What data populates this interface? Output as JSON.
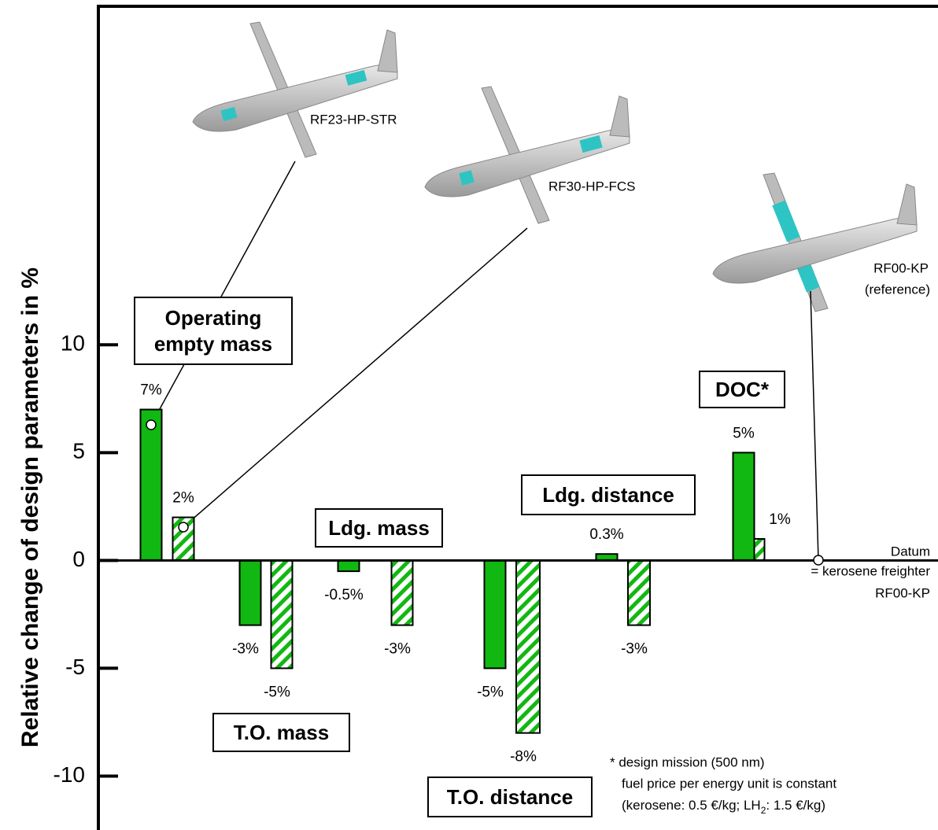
{
  "chart_data": {
    "type": "bar",
    "y_label": "Relative change of design parameters  in %",
    "categories": [
      "Operating empty mass",
      "T.O. mass",
      "Ldg. mass",
      "T.O. distance",
      "Ldg. distance",
      "DOC*"
    ],
    "series": [
      {
        "name": "RF23-HP-STR",
        "color": "#11b811",
        "hatch": false,
        "values": [
          7,
          -3,
          -0.5,
          -5,
          0.3,
          5
        ],
        "value_labels": [
          "7%",
          "-3%",
          "-0.5%",
          "-5%",
          "0.3%",
          "5%"
        ]
      },
      {
        "name": "RF30-HP-FCS",
        "color": "#11b811",
        "hatch": true,
        "values": [
          2,
          -5,
          -3,
          -8,
          -3,
          1
        ],
        "value_labels": [
          "2%",
          "-5%",
          "-3%",
          "-8%",
          "-3%",
          "1%"
        ]
      }
    ],
    "reference": {
      "name": "RF00-KP",
      "note": "(reference)"
    },
    "datum": [
      "Datum",
      "= kerosene freighter",
      "RF00-KP"
    ],
    "footnote": {
      "line1": "* design mission (500 nm)",
      "line2": "fuel price per energy unit is constant",
      "line3a": "(kerosene: 0.5 €/kg; LH",
      "line3sub": "2",
      "line3b": ": 1.5 €/kg)"
    },
    "ylim": [
      -12.5,
      25.7
    ],
    "yticks": [
      10,
      5,
      0,
      -5,
      -10
    ]
  }
}
